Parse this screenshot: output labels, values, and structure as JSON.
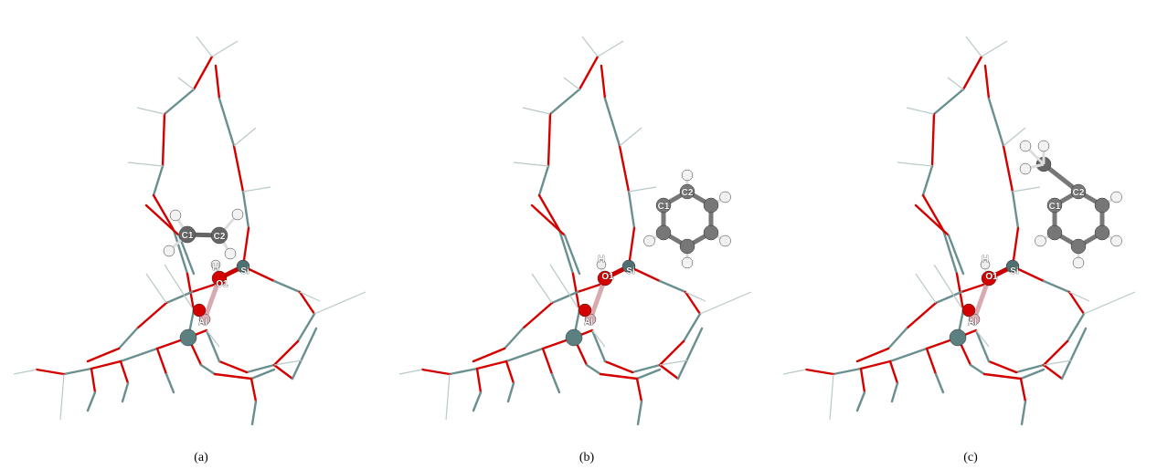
{
  "panels": [
    {
      "caption": "(a)",
      "atoms": [
        "C1",
        "C2",
        "H",
        "O1",
        "Si",
        "Al"
      ]
    },
    {
      "caption": "(b)",
      "atoms": [
        "C2",
        "C1",
        "H",
        "O1",
        "Si",
        "Al"
      ]
    },
    {
      "caption": "(c)",
      "atoms": [
        "C2",
        "C1",
        "H",
        "O1",
        "Si",
        "Al"
      ]
    }
  ]
}
